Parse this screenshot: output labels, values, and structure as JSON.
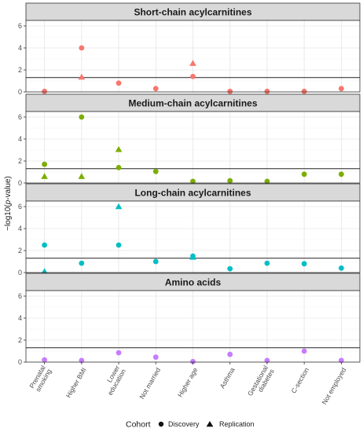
{
  "chart_data": {
    "type": "scatter",
    "y_label_prefix": "−log10(",
    "y_label_p": "p",
    "y_label_suffix": "-value)",
    "ylim": [
      0,
      6.5
    ],
    "y_ticks": [
      0,
      2,
      4,
      6
    ],
    "threshold": 1.3,
    "categories": [
      "Prenatal smoking",
      "Higher BMI",
      "Lower education",
      "Not married",
      "Higher age",
      "Asthma",
      "Gestational diabetes",
      "C-section",
      "Not employed"
    ],
    "category_labels": [
      [
        "Prenatal",
        "smoking"
      ],
      [
        "Higher BMI"
      ],
      [
        "Lower",
        "education"
      ],
      [
        "Not married"
      ],
      [
        "Higher age"
      ],
      [
        "Asthma"
      ],
      [
        "Gestational",
        "diabetes"
      ],
      [
        "C-section"
      ],
      [
        "Not employed"
      ]
    ],
    "legend": {
      "title": "Cohort",
      "placement": "bottom",
      "entries": [
        {
          "label": "Discovery",
          "shape": "circle"
        },
        {
          "label": "Replication",
          "shape": "triangle"
        }
      ]
    },
    "panels": [
      {
        "title": "Short-chain acylcarnitines",
        "color": "#F8766D",
        "discovery": [
          0.05,
          4.0,
          0.8,
          0.3,
          1.4,
          0.05,
          0.05,
          0.05,
          0.3
        ],
        "replication": [
          null,
          1.35,
          null,
          null,
          2.6,
          null,
          null,
          null,
          null
        ]
      },
      {
        "title": "Medium-chain acylcarnitines",
        "color": "#7CAE00",
        "discovery": [
          1.7,
          6.0,
          1.4,
          1.05,
          0.15,
          0.2,
          0.15,
          0.8,
          0.8
        ],
        "replication": [
          0.6,
          0.6,
          3.05,
          null,
          null,
          null,
          null,
          null,
          null
        ]
      },
      {
        "title": "Long-chain acylcarnitines",
        "color": "#00BFC4",
        "discovery": [
          2.5,
          0.85,
          2.5,
          1.0,
          1.5,
          0.35,
          0.85,
          0.8,
          0.4
        ],
        "replication": [
          0.1,
          null,
          6.0,
          null,
          1.4,
          null,
          null,
          null,
          null
        ]
      },
      {
        "title": "Amino acids",
        "color": "#C77CFF",
        "discovery": [
          0.2,
          0.15,
          0.85,
          0.45,
          0.05,
          0.7,
          0.15,
          1.0,
          0.15
        ],
        "replication": [
          null,
          null,
          null,
          null,
          null,
          null,
          null,
          null,
          null
        ]
      }
    ]
  }
}
